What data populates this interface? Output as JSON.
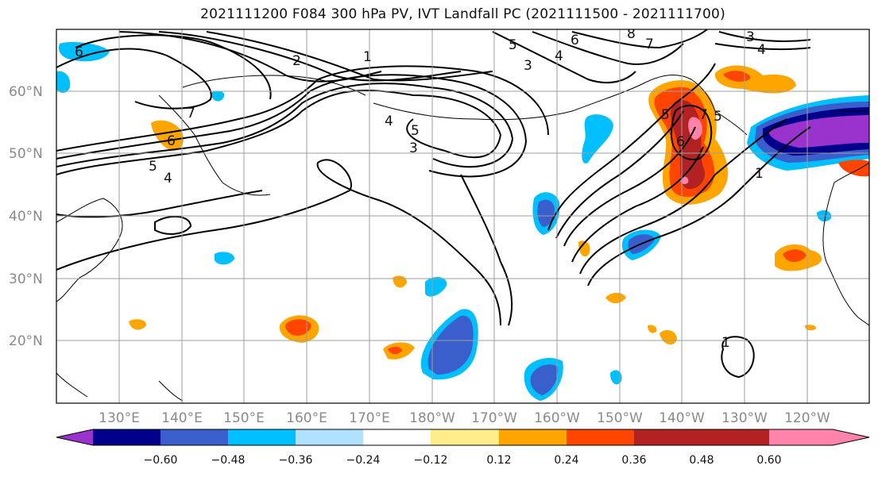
{
  "title": "2021111200 F084 300 hPa PV, IVT Landfall PC (2021111500 - 2021111700)",
  "lat_ticks": [
    "60°N",
    "50°N",
    "40°N",
    "30°N",
    "20°N"
  ],
  "lon_ticks": [
    "130°E",
    "140°E",
    "150°E",
    "160°E",
    "170°E",
    "180°W",
    "170°W",
    "160°W",
    "150°W",
    "140°W",
    "130°W",
    "120°W"
  ],
  "colorbar": {
    "labels": [
      "−0.60",
      "−0.48",
      "−0.36",
      "−0.24",
      "−0.12",
      "0.12",
      "0.24",
      "0.36",
      "0.48",
      "0.60"
    ],
    "colors": [
      "#9a32cd",
      "#00008b",
      "#3a5fcd",
      "#00bfff",
      "#b0e2ff",
      "#ffffff",
      "#ffec8b",
      "#ffa500",
      "#ff4500",
      "#b22222",
      "#ff83aa"
    ],
    "extend": "both"
  },
  "contour_labels": [
    "6",
    "2",
    "1",
    "3",
    "5",
    "4",
    "6",
    "8",
    "7",
    "3",
    "4",
    "7",
    "6",
    "5",
    "4",
    "5",
    "4",
    "3",
    "5",
    "7",
    "6",
    "5",
    "1",
    "1"
  ]
}
